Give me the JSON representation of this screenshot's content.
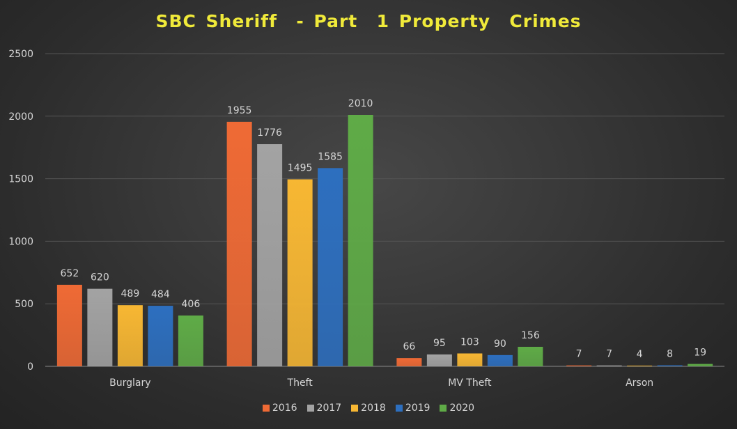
{
  "chart_data": {
    "type": "bar",
    "title": "SBC Sheriff  - Part  1 Property  Crimes",
    "xlabel": "",
    "ylabel": "",
    "ylim": [
      0,
      2500
    ],
    "yticks": [
      0,
      500,
      1000,
      1500,
      2000,
      2500
    ],
    "grid": true,
    "legend_position": "bottom",
    "categories": [
      "Burglary",
      "Theft",
      "MV Theft",
      "Arson"
    ],
    "series": [
      {
        "name": "2016",
        "color": "#ef6a35",
        "values": [
          652,
          1955,
          66,
          7
        ]
      },
      {
        "name": "2017",
        "color": "#a3a3a3",
        "values": [
          620,
          1776,
          95,
          7
        ]
      },
      {
        "name": "2018",
        "color": "#f7b733",
        "values": [
          489,
          1495,
          103,
          4
        ]
      },
      {
        "name": "2019",
        "color": "#2d6fbf",
        "values": [
          484,
          1585,
          90,
          8
        ]
      },
      {
        "name": "2020",
        "color": "#5fab47",
        "values": [
          406,
          2010,
          156,
          19
        ]
      }
    ]
  }
}
